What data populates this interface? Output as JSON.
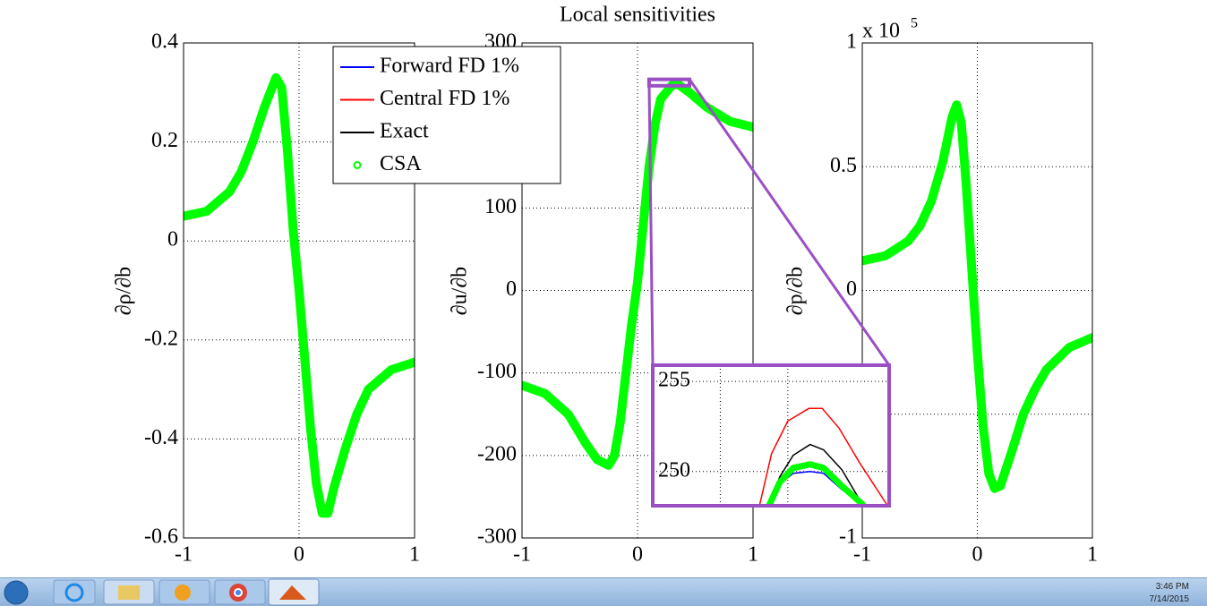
{
  "chart_data": [
    {
      "type": "line",
      "ylabel": "∂ρ/∂b",
      "xlim": [
        -1,
        1
      ],
      "xticks": [
        -1,
        0,
        1
      ],
      "ylim": [
        -0.6,
        0.4
      ],
      "yticks": [
        -0.6,
        -0.4,
        -0.2,
        0,
        0.2,
        0.4
      ],
      "grid": true,
      "series": [
        {
          "name": "CSA",
          "color": "#00ff00",
          "x": [
            -1,
            -0.8,
            -0.6,
            -0.5,
            -0.4,
            -0.3,
            -0.2,
            -0.15,
            -0.1,
            -0.05,
            0,
            0.05,
            0.1,
            0.15,
            0.2,
            0.25,
            0.3,
            0.4,
            0.5,
            0.6,
            0.8,
            1
          ],
          "values": [
            0.05,
            0.06,
            0.1,
            0.14,
            0.2,
            0.27,
            0.33,
            0.31,
            0.18,
            0.02,
            -0.1,
            -0.24,
            -0.38,
            -0.49,
            -0.55,
            -0.55,
            -0.5,
            -0.42,
            -0.35,
            -0.3,
            -0.26,
            -0.245
          ]
        }
      ]
    },
    {
      "type": "line",
      "title": "Local sensitivities",
      "ylabel": "∂u/∂b",
      "xlim": [
        -1,
        1
      ],
      "xticks": [
        -1,
        0,
        1
      ],
      "ylim": [
        -300,
        300
      ],
      "yticks": [
        -300,
        -200,
        -100,
        0,
        100,
        300
      ],
      "grid": true,
      "series": [
        {
          "name": "CSA",
          "color": "#00ff00",
          "x": [
            -1,
            -0.8,
            -0.6,
            -0.45,
            -0.35,
            -0.25,
            -0.2,
            -0.15,
            -0.1,
            -0.05,
            0,
            0.05,
            0.1,
            0.15,
            0.2,
            0.3,
            0.35,
            0.45,
            0.6,
            0.8,
            1
          ],
          "values": [
            -115,
            -125,
            -150,
            -185,
            -205,
            -212,
            -200,
            -160,
            -100,
            -40,
            10,
            80,
            150,
            200,
            232,
            249,
            250,
            240,
            222,
            205,
            198
          ]
        }
      ]
    },
    {
      "type": "line",
      "ylabel": "∂p/∂b",
      "y_multiplier": "x 10",
      "y_multiplier_exponent": "5",
      "xlim": [
        -1,
        1
      ],
      "xticks": [
        -1,
        0,
        1
      ],
      "ylim": [
        -1,
        1
      ],
      "yticks": [
        -1,
        -0.5,
        0,
        0.5,
        1
      ],
      "grid": true,
      "series": [
        {
          "name": "CSA",
          "color": "#00ff00",
          "x": [
            -1,
            -0.8,
            -0.6,
            -0.5,
            -0.4,
            -0.3,
            -0.22,
            -0.18,
            -0.14,
            -0.1,
            -0.05,
            0,
            0.05,
            0.1,
            0.15,
            0.2,
            0.3,
            0.4,
            0.5,
            0.6,
            0.8,
            1
          ],
          "values": [
            0.12,
            0.14,
            0.2,
            0.26,
            0.36,
            0.52,
            0.7,
            0.75,
            0.68,
            0.45,
            0.1,
            -0.25,
            -0.55,
            -0.74,
            -0.8,
            -0.79,
            -0.65,
            -0.5,
            -0.4,
            -0.32,
            -0.23,
            -0.19
          ]
        }
      ]
    },
    {
      "type": "line",
      "xlim": [
        0.1,
        0.45
      ],
      "xticks": [
        0.2,
        0.3
      ],
      "xtick_labels": false,
      "ylim": [
        248.1,
        255.9
      ],
      "yticks": [
        250,
        255
      ],
      "ytick_labels_inside": true,
      "grid": true,
      "legend": "upper left",
      "series": [
        {
          "name": "Forward FD 1%",
          "color": "#0000ff",
          "x": [
            0.272,
            0.288,
            0.308,
            0.333,
            0.353,
            0.38,
            0.41
          ],
          "values": [
            248.1,
            249.3,
            249.9,
            250.0,
            249.9,
            249.0,
            248.2
          ]
        },
        {
          "name": "Central FD 1%",
          "color": "#ff0000",
          "x": [
            0.258,
            0.276,
            0.3,
            0.331,
            0.351,
            0.376,
            0.406,
            0.446
          ],
          "values": [
            248.1,
            251,
            252.8,
            253.5,
            253.5,
            252.4,
            250.5,
            248.2
          ]
        },
        {
          "name": "Exact",
          "color": "#000000",
          "x": [
            0.272,
            0.288,
            0.308,
            0.333,
            0.353,
            0.38,
            0.41
          ],
          "values": [
            248.1,
            249.7,
            250.9,
            251.5,
            251.2,
            250.1,
            248.2
          ]
        },
        {
          "name": "CSA",
          "color": "#00ff00",
          "marker": "o",
          "x": [
            0.272,
            0.288,
            0.308,
            0.333,
            0.353,
            0.38,
            0.41
          ],
          "values": [
            248.1,
            249.4,
            250.2,
            250.4,
            250.2,
            249.2,
            248.2
          ]
        }
      ]
    }
  ],
  "taskbar": {
    "time": "3:46 PM",
    "date": "7/14/2015"
  }
}
